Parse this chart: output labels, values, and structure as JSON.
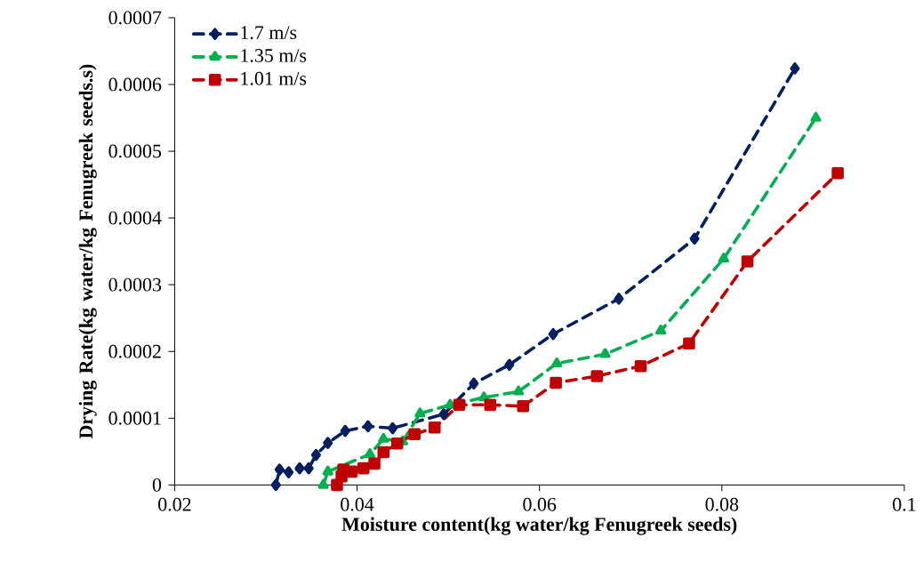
{
  "chart_data": {
    "type": "line",
    "xlabel": "Moisture content(kg water/kg Fenugreek seeds)",
    "ylabel": "Drying Rate(kg water/kg Fenugreek seeds.s)",
    "xlim": [
      0.02,
      0.1
    ],
    "xticks": [
      0.02,
      0.04,
      0.06,
      0.08,
      0.1
    ],
    "ylim": [
      0,
      0.0007
    ],
    "yticks": [
      0,
      0.0001,
      0.0002,
      0.0003,
      0.0004,
      0.0005,
      0.0006,
      0.0007
    ],
    "grid": false,
    "legend": "top left",
    "line_style": "dashed",
    "series": [
      {
        "name": "1.7 m/s",
        "color": "#002060",
        "marker": "diamond",
        "x": [
          0.0311,
          0.0315,
          0.0325,
          0.0337,
          0.0347,
          0.0355,
          0.0368,
          0.0387,
          0.0412,
          0.0439,
          0.0495,
          0.0528,
          0.0567,
          0.0615,
          0.0687,
          0.077,
          0.088
        ],
        "values": [
          0,
          2.3e-05,
          1.9e-05,
          2.5e-05,
          2.5e-05,
          4.5e-05,
          6.3e-05,
          8.1e-05,
          8.8e-05,
          8.5e-05,
          0.000106,
          0.000152,
          0.00018,
          0.000226,
          0.000279,
          0.000369,
          0.000624
        ]
      },
      {
        "name": "1.35 m/s",
        "color": "#00b050",
        "marker": "triangle",
        "x": [
          0.0363,
          0.0368,
          0.039,
          0.0414,
          0.0429,
          0.045,
          0.0469,
          0.0502,
          0.0539,
          0.0577,
          0.0619,
          0.0672,
          0.0733,
          0.0802,
          0.0903
        ],
        "values": [
          0,
          2e-05,
          null,
          4.6e-05,
          6.9e-05,
          6.5e-05,
          0.000107,
          0.00012,
          0.000131,
          0.00014,
          0.000182,
          0.000196,
          0.000231,
          0.000339,
          0.00055
        ]
      },
      {
        "name": "1.01 m/s",
        "color": "#c00000",
        "marker": "square",
        "x": [
          0.0378,
          0.0383,
          0.0385,
          0.0394,
          0.0407,
          0.0419,
          0.0429,
          0.0444,
          0.0463,
          0.0485,
          0.0512,
          0.0546,
          0.0582,
          0.0618,
          0.0663,
          0.0711,
          0.0764,
          0.0828,
          0.0927
        ],
        "values": [
          0,
          1.3e-05,
          2.3e-05,
          2e-05,
          2.5e-05,
          3.2e-05,
          4.9e-05,
          6.2e-05,
          7.6e-05,
          8.6e-05,
          0.00012,
          0.00012,
          0.000118,
          0.000153,
          0.000163,
          0.000178,
          0.000212,
          0.000335,
          0.000467
        ]
      }
    ]
  }
}
